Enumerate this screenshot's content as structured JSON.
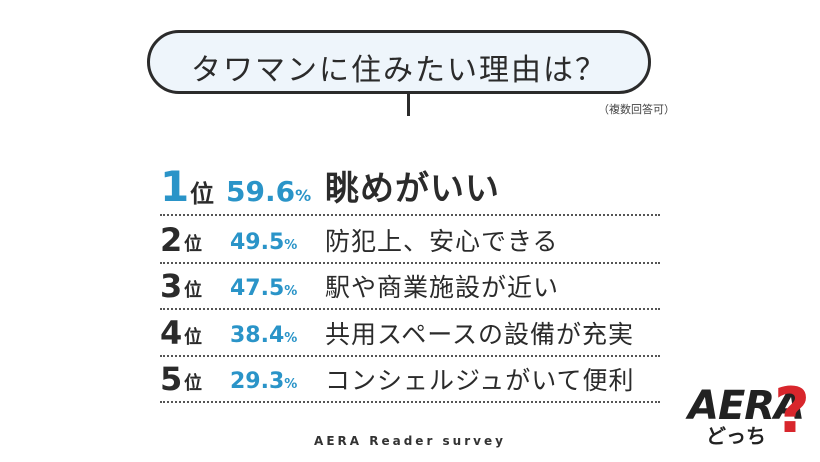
{
  "header": {
    "title": "タワマンに住みたい理由は？",
    "note": "（複数回答可）"
  },
  "chart_data": {
    "type": "table",
    "title": "タワマンに住みたい理由は？",
    "rank_suffix": "位",
    "percent_sign": "%",
    "rows": [
      {
        "rank": "1",
        "percent": "59.6",
        "reason": "眺めがいい"
      },
      {
        "rank": "2",
        "percent": "49.5",
        "reason": "防犯上、安心できる"
      },
      {
        "rank": "3",
        "percent": "47.5",
        "reason": "駅や商業施設が近い"
      },
      {
        "rank": "4",
        "percent": "38.4",
        "reason": "共用スペースの設備が充実"
      },
      {
        "rank": "5",
        "percent": "29.3",
        "reason": "コンシェルジュがいて便利"
      }
    ]
  },
  "footer": {
    "source": "AERA Reader survey"
  },
  "logo": {
    "main": "AERA",
    "sub": "どっち",
    "mark": "?"
  },
  "colors": {
    "accent": "#2a94c8",
    "logo_red": "#d8262c",
    "bubble_fill": "#eef5fb"
  }
}
